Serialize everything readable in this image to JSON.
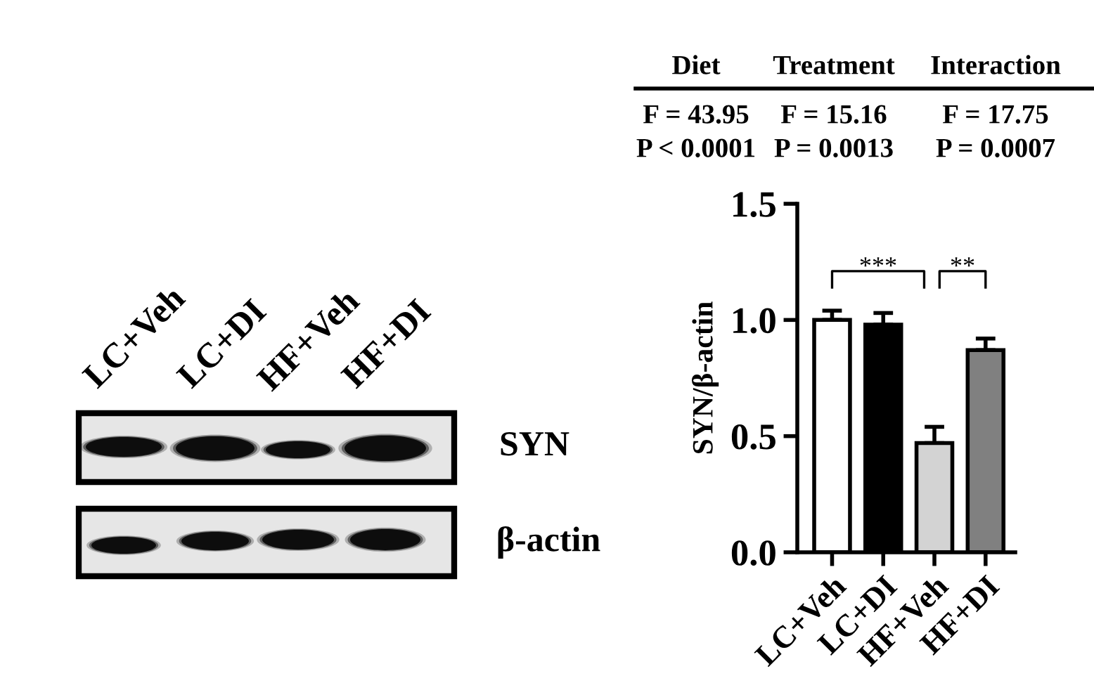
{
  "chart_data": [
    {
      "type": "other",
      "annotations": [
        "LC+Veh",
        "LC+DI",
        "HF+Veh",
        "HF+DI",
        "SYN",
        "β-actin"
      ]
    },
    {
      "type": "bar",
      "categories": [
        "LC+Veh",
        "LC+DI",
        "HF+Veh",
        "HF+DI"
      ],
      "values": [
        1.0,
        0.98,
        0.47,
        0.87
      ],
      "errors": [
        [
          1.0,
          1.04
        ],
        [
          0.98,
          1.03
        ],
        [
          0.47,
          0.54
        ],
        [
          0.87,
          0.92
        ]
      ],
      "colors": [
        "#ffffff",
        "#000000",
        "#d3d3d3",
        "#808080"
      ],
      "ylabel": "SYN/β-actin",
      "ylim": [
        0,
        1.5
      ],
      "yticks": [
        {
          "value": 0,
          "label": "0.0"
        },
        {
          "value": 0.5,
          "label": "0.5"
        },
        {
          "value": 1,
          "label": "1.0"
        },
        {
          "value": 1.5,
          "label": "1.5"
        }
      ],
      "grid": false,
      "annotations": [
        "Diet",
        "Treatment",
        "Interaction",
        "F = 43.95",
        "F = 15.16",
        "F = 17.75",
        "P < 0.0001",
        "P = 0.0013",
        "P = 0.0007",
        "***",
        "**"
      ]
    }
  ]
}
